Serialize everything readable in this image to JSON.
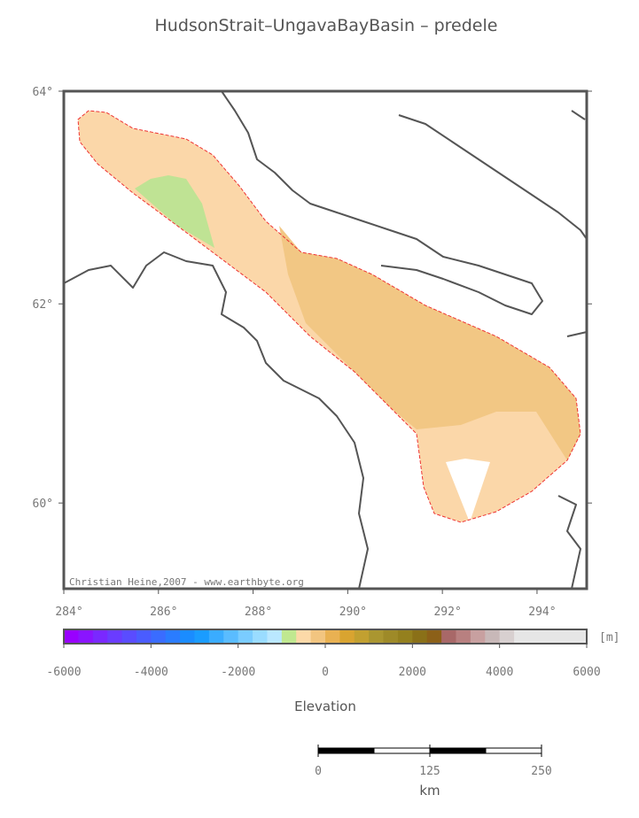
{
  "title": "HudsonStrait–UngavaBayBasin – predele",
  "map": {
    "lon_range": [
      284,
      295.05
    ],
    "lat_range": [
      59.1,
      64
    ],
    "lat_ticks": [
      {
        "value": 64,
        "label": "64°"
      },
      {
        "value": 62,
        "label": "62°"
      },
      {
        "value": 60,
        "label": "60°"
      }
    ],
    "lon_ticks": [
      {
        "value": 284,
        "label": "284°"
      },
      {
        "value": 286,
        "label": "286°"
      },
      {
        "value": 288,
        "label": "288°"
      },
      {
        "value": 290,
        "label": "290°"
      },
      {
        "value": 292,
        "label": "292°"
      },
      {
        "value": 294,
        "label": "294°"
      }
    ],
    "credit": "Christian Heine,2007 - www.earthbyte.org"
  },
  "colorbar": {
    "unit": "[m]",
    "label": "Elevation",
    "range": [
      -6000,
      6000
    ],
    "ticks": [
      -6000,
      -4000,
      -2000,
      0,
      2000,
      4000,
      6000
    ],
    "colors": [
      "#9900ff",
      "#8a14ff",
      "#7a28ff",
      "#6a3cff",
      "#5a4cff",
      "#4a5cff",
      "#3a6cff",
      "#2a7cff",
      "#1a8cff",
      "#1a9cff",
      "#3aacff",
      "#5abcff",
      "#7accff",
      "#9adcff",
      "#bae8ff",
      "#c0e890",
      "#fcd9a8",
      "#f2c580",
      "#e9b152",
      "#d9a430",
      "#c2a030",
      "#aa9630",
      "#9e8a28",
      "#94801e",
      "#8a7018",
      "#8c6018",
      "#a86868",
      "#b88080",
      "#c8a0a0",
      "#c8b8b8",
      "#d8d0d0",
      "#e6e6e6",
      "#e6e6e6",
      "#e6e6e6",
      "#e6e6e6",
      "#e6e6e6"
    ]
  },
  "scale_bar": {
    "unit": "km",
    "range": [
      0,
      250
    ],
    "ticks": [
      0,
      125,
      250
    ]
  }
}
